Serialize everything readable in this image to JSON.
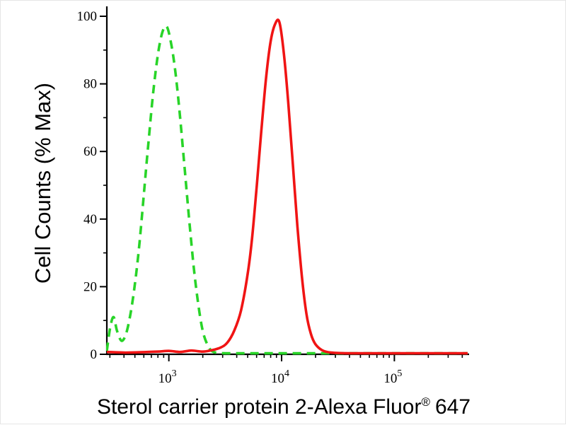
{
  "figure": {
    "background": "#ffffff",
    "axis_color": "#000000"
  },
  "x_axis_label": {
    "main": "Sterol carrier protein 2-Alexa Fluor",
    "registered_mark": "®",
    "suffix": "647"
  },
  "chart_data": {
    "type": "line",
    "title": "",
    "xlabel": "Sterol carrier protein 2-Alexa Fluor® 647",
    "ylabel": "Cell Counts (% Max)",
    "x_scale": "log10",
    "x_domain_log10": [
      2.45,
      5.65
    ],
    "x_major_ticks_log10": [
      3,
      4,
      5
    ],
    "ylim": [
      0,
      100
    ],
    "y_major_ticks": [
      0,
      20,
      40,
      60,
      80,
      100
    ],
    "y_minor_ticks": [
      10,
      30,
      50,
      70,
      90
    ],
    "grid": false,
    "legend": "none",
    "series": [
      {
        "name": "green-dashed",
        "style": "dashed",
        "color": "#28d428",
        "stroke_width": 3.6,
        "points": [
          [
            2.45,
            1
          ],
          [
            2.48,
            8
          ],
          [
            2.51,
            11
          ],
          [
            2.54,
            7
          ],
          [
            2.58,
            4
          ],
          [
            2.62,
            6
          ],
          [
            2.66,
            12
          ],
          [
            2.7,
            21
          ],
          [
            2.74,
            33
          ],
          [
            2.78,
            48
          ],
          [
            2.82,
            63
          ],
          [
            2.86,
            77
          ],
          [
            2.9,
            88
          ],
          [
            2.94,
            95
          ],
          [
            2.98,
            97
          ],
          [
            3.02,
            92
          ],
          [
            3.06,
            83
          ],
          [
            3.1,
            70
          ],
          [
            3.14,
            55
          ],
          [
            3.18,
            40
          ],
          [
            3.22,
            26
          ],
          [
            3.26,
            15
          ],
          [
            3.3,
            7
          ],
          [
            3.34,
            3
          ],
          [
            3.38,
            1
          ],
          [
            3.44,
            0.4
          ],
          [
            3.6,
            0.3
          ],
          [
            4.0,
            0.3
          ],
          [
            4.6,
            0.3
          ],
          [
            5.2,
            0.3
          ],
          [
            5.65,
            0.3
          ]
        ]
      },
      {
        "name": "red-solid",
        "style": "solid",
        "color": "#f01414",
        "stroke_width": 3.6,
        "points": [
          [
            2.45,
            0.7
          ],
          [
            2.6,
            0.5
          ],
          [
            2.75,
            0.6
          ],
          [
            2.9,
            0.8
          ],
          [
            3.0,
            1.0
          ],
          [
            3.1,
            0.7
          ],
          [
            3.2,
            1.1
          ],
          [
            3.3,
            0.8
          ],
          [
            3.38,
            1.2
          ],
          [
            3.46,
            2
          ],
          [
            3.52,
            3.5
          ],
          [
            3.58,
            7
          ],
          [
            3.64,
            13
          ],
          [
            3.7,
            24
          ],
          [
            3.74,
            35
          ],
          [
            3.78,
            50
          ],
          [
            3.82,
            66
          ],
          [
            3.86,
            81
          ],
          [
            3.9,
            92
          ],
          [
            3.94,
            97.5
          ],
          [
            3.98,
            98.3
          ],
          [
            4.02,
            89
          ],
          [
            4.06,
            74
          ],
          [
            4.1,
            56
          ],
          [
            4.14,
            38
          ],
          [
            4.18,
            23
          ],
          [
            4.22,
            12
          ],
          [
            4.26,
            6
          ],
          [
            4.3,
            3
          ],
          [
            4.36,
            1.2
          ],
          [
            4.44,
            0.5
          ],
          [
            4.6,
            0.3
          ],
          [
            5.0,
            0.3
          ],
          [
            5.65,
            0.3
          ]
        ]
      }
    ]
  }
}
